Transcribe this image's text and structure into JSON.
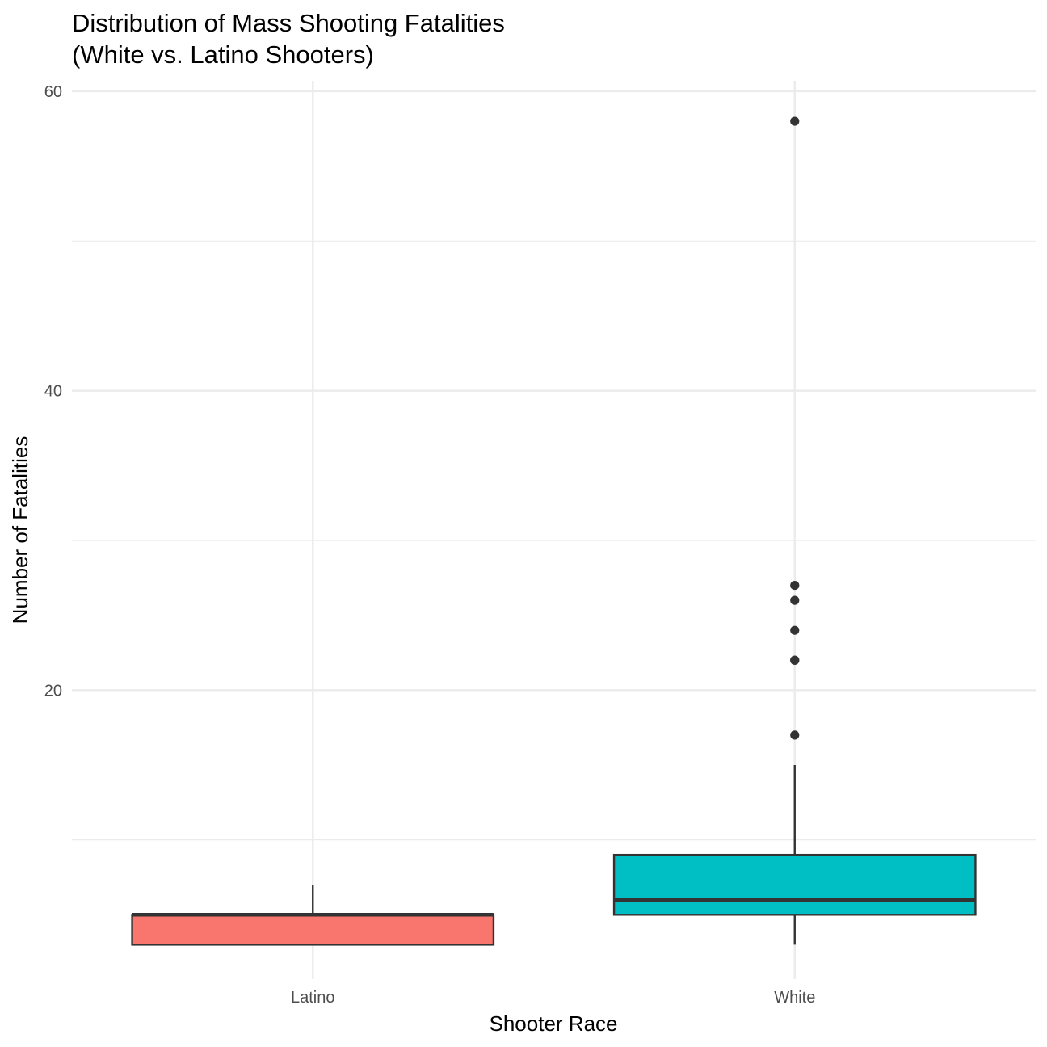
{
  "chart_data": {
    "type": "boxplot",
    "title": [
      "Distribution of Mass Shooting Fatalities",
      "(White vs. Latino Shooters)"
    ],
    "xlabel": "Shooter Race",
    "ylabel": "Number of Fatalities",
    "ylim": [
      0.7,
      60.7
    ],
    "y_major_ticks": [
      20,
      40,
      60
    ],
    "y_minor_ticks": [
      10,
      30,
      50
    ],
    "y_tick_labels": [
      "20",
      "40",
      "60"
    ],
    "categories": [
      "Latino",
      "White"
    ],
    "series": [
      {
        "name": "Latino",
        "color": "#f8766d",
        "min": 3,
        "q1": 3,
        "median": 5,
        "q3": 5,
        "max": 7,
        "outliers": []
      },
      {
        "name": "White",
        "color": "#00bfc4",
        "min": 3,
        "q1": 5,
        "median": 6,
        "q3": 9,
        "max": 15,
        "outliers": [
          17,
          22,
          22,
          24,
          26,
          27,
          58
        ]
      }
    ],
    "grid": true,
    "legend": "none"
  }
}
